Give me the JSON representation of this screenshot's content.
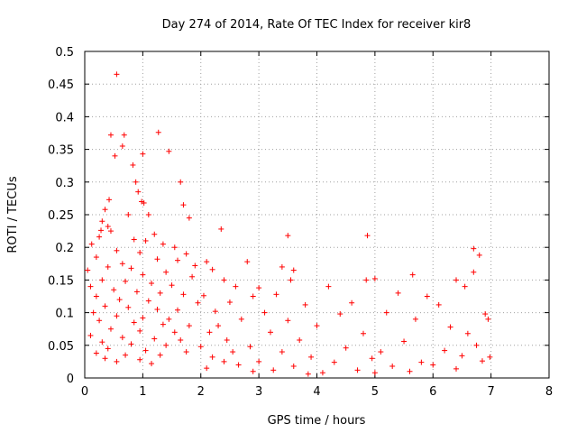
{
  "chart_data": {
    "type": "scatter",
    "title": "Day 274 of 2014, Rate Of TEC Index for receiver kir8",
    "xlabel": "GPS time / hours",
    "ylabel": "ROTI / TECUs",
    "xlim": [
      0,
      8
    ],
    "ylim": [
      0,
      0.5
    ],
    "xticks": [
      "0",
      "1",
      "2",
      "3",
      "4",
      "5",
      "6",
      "7",
      "8"
    ],
    "yticks": [
      "0",
      "0.05",
      "0.1",
      "0.15",
      "0.2",
      "0.25",
      "0.3",
      "0.35",
      "0.4",
      "0.45",
      "0.5"
    ],
    "grid": true,
    "marker": "+",
    "color": "#ff0000",
    "series": [
      {
        "name": "ROTI",
        "points": [
          [
            0.55,
            0.465
          ],
          [
            1.27,
            0.376
          ],
          [
            0.45,
            0.372
          ],
          [
            0.68,
            0.372
          ],
          [
            1.45,
            0.347
          ],
          [
            0.65,
            0.355
          ],
          [
            0.52,
            0.34
          ],
          [
            1.0,
            0.343
          ],
          [
            0.83,
            0.326
          ],
          [
            0.88,
            0.3
          ],
          [
            1.65,
            0.3
          ],
          [
            0.92,
            0.285
          ],
          [
            0.98,
            0.27
          ],
          [
            1.02,
            0.268
          ],
          [
            1.7,
            0.265
          ],
          [
            0.42,
            0.273
          ],
          [
            0.35,
            0.258
          ],
          [
            1.8,
            0.245
          ],
          [
            0.75,
            0.25
          ],
          [
            1.1,
            0.25
          ],
          [
            0.3,
            0.24
          ],
          [
            0.4,
            0.232
          ],
          [
            2.35,
            0.228
          ],
          [
            0.28,
            0.226
          ],
          [
            0.45,
            0.225
          ],
          [
            1.2,
            0.22
          ],
          [
            3.5,
            0.218
          ],
          [
            4.87,
            0.218
          ],
          [
            0.25,
            0.216
          ],
          [
            0.85,
            0.212
          ],
          [
            1.05,
            0.21
          ],
          [
            1.35,
            0.205
          ],
          [
            1.55,
            0.2
          ],
          [
            6.7,
            0.198
          ],
          [
            0.12,
            0.205
          ],
          [
            0.55,
            0.195
          ],
          [
            0.95,
            0.192
          ],
          [
            1.75,
            0.19
          ],
          [
            6.8,
            0.188
          ],
          [
            0.2,
            0.185
          ],
          [
            1.25,
            0.182
          ],
          [
            1.6,
            0.18
          ],
          [
            2.1,
            0.178
          ],
          [
            0.65,
            0.175
          ],
          [
            1.9,
            0.172
          ],
          [
            0.4,
            0.17
          ],
          [
            0.8,
            0.168
          ],
          [
            2.2,
            0.166
          ],
          [
            6.7,
            0.162
          ],
          [
            0.05,
            0.165
          ],
          [
            1.4,
            0.162
          ],
          [
            2.8,
            0.178
          ],
          [
            3.4,
            0.17
          ],
          [
            3.6,
            0.165
          ],
          [
            1.0,
            0.158
          ],
          [
            1.85,
            0.155
          ],
          [
            2.4,
            0.15
          ],
          [
            3.55,
            0.15
          ],
          [
            4.85,
            0.15
          ],
          [
            5.0,
            0.152
          ],
          [
            5.65,
            0.158
          ],
          [
            6.4,
            0.15
          ],
          [
            0.3,
            0.15
          ],
          [
            0.7,
            0.148
          ],
          [
            1.15,
            0.145
          ],
          [
            1.5,
            0.142
          ],
          [
            2.6,
            0.14
          ],
          [
            3.0,
            0.138
          ],
          [
            4.2,
            0.14
          ],
          [
            6.55,
            0.14
          ],
          [
            0.1,
            0.14
          ],
          [
            0.5,
            0.135
          ],
          [
            0.9,
            0.132
          ],
          [
            1.3,
            0.13
          ],
          [
            1.7,
            0.128
          ],
          [
            2.05,
            0.126
          ],
          [
            2.9,
            0.125
          ],
          [
            3.3,
            0.128
          ],
          [
            5.4,
            0.13
          ],
          [
            5.9,
            0.125
          ],
          [
            0.2,
            0.125
          ],
          [
            0.6,
            0.12
          ],
          [
            1.1,
            0.118
          ],
          [
            1.95,
            0.115
          ],
          [
            2.5,
            0.116
          ],
          [
            3.8,
            0.112
          ],
          [
            4.6,
            0.115
          ],
          [
            6.1,
            0.112
          ],
          [
            0.35,
            0.11
          ],
          [
            0.75,
            0.108
          ],
          [
            1.25,
            0.105
          ],
          [
            1.6,
            0.104
          ],
          [
            2.25,
            0.102
          ],
          [
            3.1,
            0.1
          ],
          [
            4.4,
            0.098
          ],
          [
            5.2,
            0.1
          ],
          [
            6.9,
            0.098
          ],
          [
            0.15,
            0.1
          ],
          [
            0.55,
            0.095
          ],
          [
            1.0,
            0.092
          ],
          [
            1.45,
            0.09
          ],
          [
            2.7,
            0.09
          ],
          [
            3.5,
            0.088
          ],
          [
            5.7,
            0.09
          ],
          [
            6.95,
            0.09
          ],
          [
            0.25,
            0.088
          ],
          [
            0.85,
            0.085
          ],
          [
            1.35,
            0.082
          ],
          [
            1.8,
            0.08
          ],
          [
            2.3,
            0.08
          ],
          [
            4.0,
            0.08
          ],
          [
            6.3,
            0.078
          ],
          [
            0.45,
            0.075
          ],
          [
            0.95,
            0.072
          ],
          [
            1.55,
            0.07
          ],
          [
            2.15,
            0.07
          ],
          [
            3.2,
            0.07
          ],
          [
            4.8,
            0.068
          ],
          [
            6.6,
            0.068
          ],
          [
            0.1,
            0.065
          ],
          [
            0.65,
            0.062
          ],
          [
            1.2,
            0.06
          ],
          [
            1.65,
            0.058
          ],
          [
            2.45,
            0.058
          ],
          [
            3.7,
            0.058
          ],
          [
            5.5,
            0.056
          ],
          [
            0.3,
            0.055
          ],
          [
            0.8,
            0.052
          ],
          [
            1.4,
            0.05
          ],
          [
            2.0,
            0.048
          ],
          [
            2.85,
            0.048
          ],
          [
            4.5,
            0.046
          ],
          [
            6.75,
            0.05
          ],
          [
            0.4,
            0.045
          ],
          [
            1.05,
            0.042
          ],
          [
            1.75,
            0.04
          ],
          [
            2.55,
            0.04
          ],
          [
            3.4,
            0.04
          ],
          [
            5.1,
            0.04
          ],
          [
            6.2,
            0.042
          ],
          [
            0.2,
            0.038
          ],
          [
            0.7,
            0.035
          ],
          [
            1.3,
            0.035
          ],
          [
            2.2,
            0.032
          ],
          [
            3.9,
            0.032
          ],
          [
            4.95,
            0.03
          ],
          [
            6.5,
            0.034
          ],
          [
            6.98,
            0.032
          ],
          [
            0.35,
            0.03
          ],
          [
            0.95,
            0.028
          ],
          [
            2.4,
            0.025
          ],
          [
            3.0,
            0.025
          ],
          [
            4.3,
            0.024
          ],
          [
            5.8,
            0.024
          ],
          [
            6.85,
            0.026
          ],
          [
            0.55,
            0.025
          ],
          [
            1.15,
            0.022
          ],
          [
            2.65,
            0.02
          ],
          [
            3.6,
            0.018
          ],
          [
            5.3,
            0.018
          ],
          [
            6.0,
            0.02
          ],
          [
            2.1,
            0.015
          ],
          [
            3.25,
            0.012
          ],
          [
            4.7,
            0.012
          ],
          [
            6.4,
            0.014
          ],
          [
            2.9,
            0.01
          ],
          [
            4.1,
            0.008
          ],
          [
            5.6,
            0.01
          ],
          [
            3.85,
            0.006
          ],
          [
            5.0,
            0.008
          ]
        ]
      }
    ]
  }
}
